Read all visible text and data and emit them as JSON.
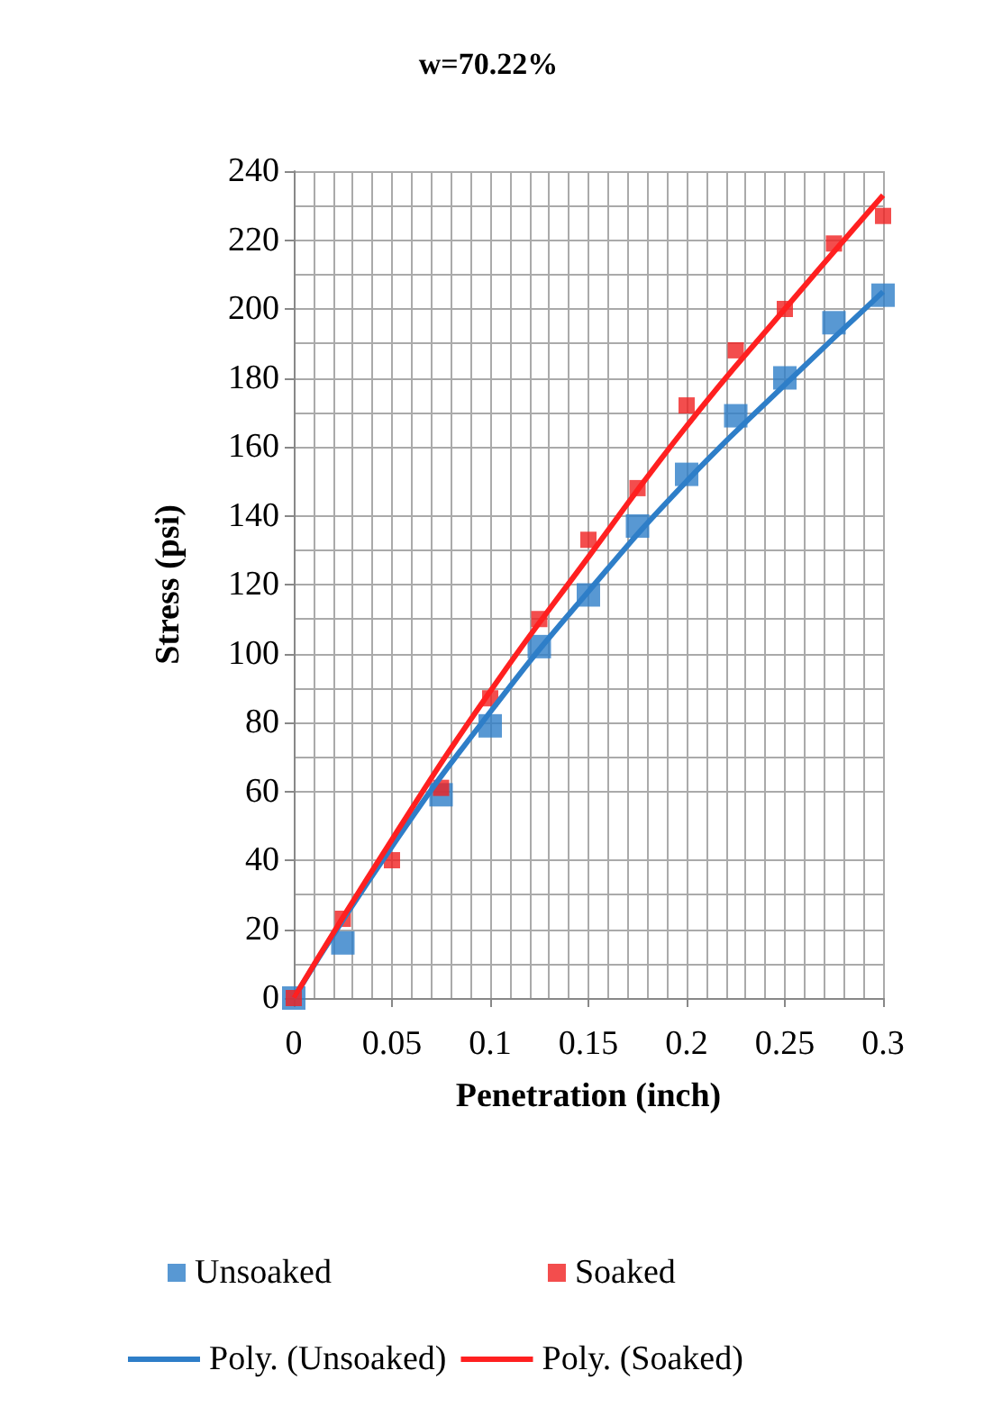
{
  "chart_data": {
    "type": "scatter",
    "title": "w=70.22%",
    "xlabel": "Penetration (inch)",
    "ylabel": "Stress (psi)",
    "x": [
      0,
      0.025,
      0.05,
      0.075,
      0.1,
      0.125,
      0.15,
      0.175,
      0.2,
      0.225,
      0.25,
      0.275,
      0.3
    ],
    "series": [
      {
        "name": "Unsoaked",
        "color": "#2e7ec8",
        "values": [
          0,
          16,
          null,
          59,
          79,
          102,
          117,
          137,
          152,
          169,
          180,
          196,
          204
        ]
      },
      {
        "name": "Soaked",
        "color": "#f02020",
        "values": [
          0,
          23,
          40,
          61,
          87,
          110,
          133,
          148,
          172,
          188,
          200,
          219,
          227
        ]
      },
      {
        "name": "Poly. (Unsoaked)",
        "type": "line",
        "marker": "none",
        "color": "#2e7ec8",
        "x": [
          0,
          0.05,
          0.1,
          0.15,
          0.2,
          0.25,
          0.3
        ],
        "values": [
          0,
          44,
          83,
          118,
          150,
          178,
          205
        ]
      },
      {
        "name": "Poly. (Soaked)",
        "type": "line",
        "marker": "none",
        "color": "#ff2020",
        "x": [
          0,
          0.05,
          0.1,
          0.15,
          0.2,
          0.25,
          0.3
        ],
        "values": [
          0,
          46,
          89,
          128,
          166,
          200,
          233
        ]
      }
    ],
    "xlim": [
      0,
      0.3
    ],
    "xticks": [
      0,
      0.05,
      0.1,
      0.15,
      0.2,
      0.25,
      0.3
    ],
    "ylim": [
      0,
      240
    ],
    "yticks": [
      0,
      20,
      40,
      60,
      80,
      100,
      120,
      140,
      160,
      180,
      200,
      220,
      240
    ],
    "grid": true,
    "legend": "bottom",
    "marker": "square",
    "line_style": "solid"
  }
}
